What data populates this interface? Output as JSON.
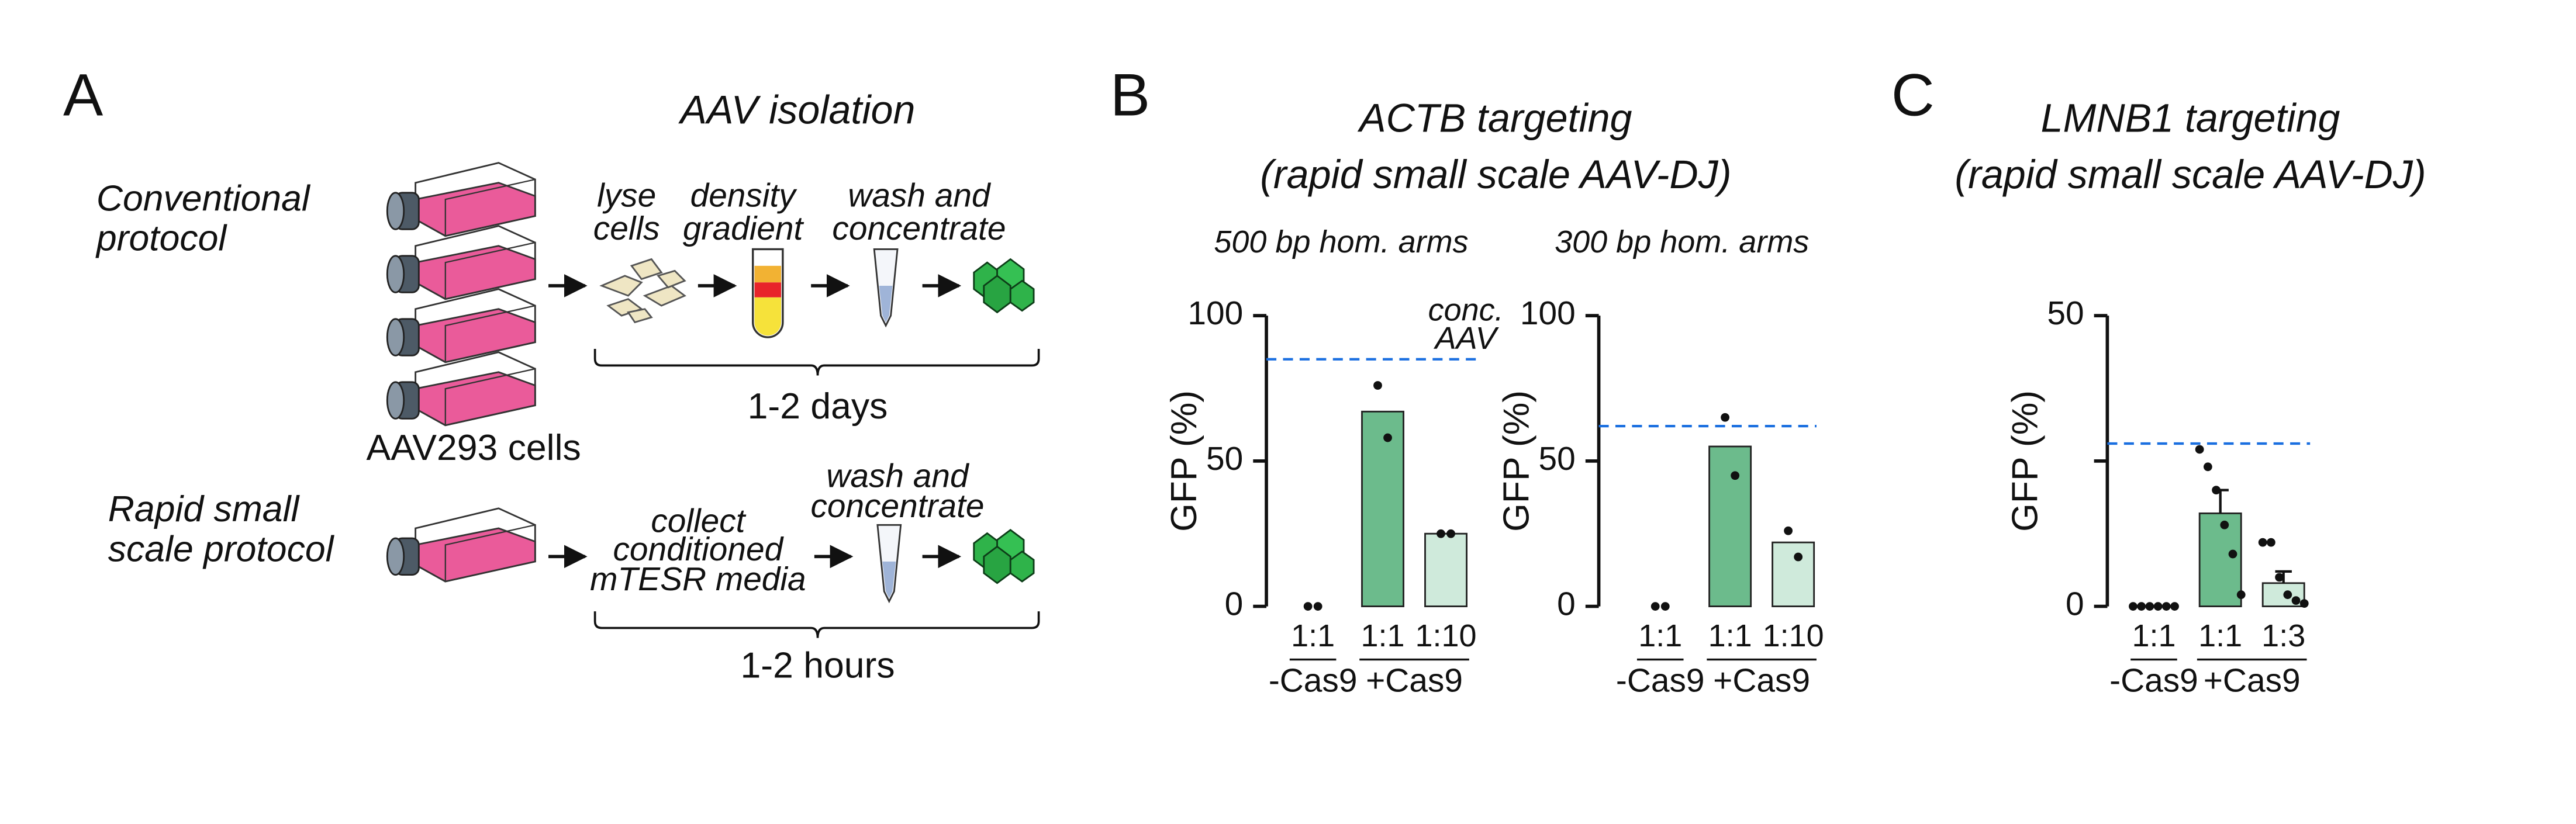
{
  "panels": {
    "a": "A",
    "b": "B",
    "c": "C"
  },
  "diagram": {
    "title": "AAV isolation",
    "conventional": [
      "Conventional",
      "protocol"
    ],
    "lyse": [
      "lyse",
      "cells"
    ],
    "density": [
      "density",
      "gradient"
    ],
    "wash1": [
      "wash and",
      "concentrate"
    ],
    "days": "1-2 days",
    "cells": "AAV293 cells",
    "rapid": [
      "Rapid small",
      "scale protocol"
    ],
    "collect": [
      "collect",
      "conditioned",
      "mTESR media"
    ],
    "wash2": [
      "wash and",
      "concentrate"
    ],
    "hours": "1-2 hours"
  },
  "chart_data": [
    {
      "type": "bar",
      "title": [
        "ACTB targeting",
        "(rapid small scale AAV-DJ)"
      ],
      "subtitle": "500 bp hom. arms",
      "ylabel": "GFP (%)",
      "categories": [
        "1:1",
        "1:1",
        "1:10"
      ],
      "groups": [
        {
          "label": "-Cas9",
          "size": 1
        },
        {
          "label": "+Cas9",
          "size": 2
        }
      ],
      "values": [
        0,
        67,
        25
      ],
      "points": [
        [
          0,
          0
        ],
        [
          76,
          58
        ],
        [
          25,
          25
        ]
      ],
      "colors": [
        "#6cbb8c",
        "#6cbb8c",
        "#cfeadb"
      ],
      "ylim": [
        0,
        100
      ],
      "yticks": [
        0,
        50,
        100
      ],
      "reference": {
        "value": 85,
        "label": [
          "conc.",
          "AAV"
        ],
        "color": "#1a6fe0"
      }
    },
    {
      "type": "bar",
      "subtitle": "300 bp hom. arms",
      "ylabel": "GFP (%)",
      "categories": [
        "1:1",
        "1:1",
        "1:10"
      ],
      "groups": [
        {
          "label": "-Cas9",
          "size": 1
        },
        {
          "label": "+Cas9",
          "size": 2
        }
      ],
      "values": [
        0,
        55,
        22
      ],
      "points": [
        [
          0,
          0
        ],
        [
          65,
          45
        ],
        [
          26,
          17
        ]
      ],
      "colors": [
        "#6cbb8c",
        "#6cbb8c",
        "#cfeadb"
      ],
      "ylim": [
        0,
        100
      ],
      "yticks": [
        0,
        50,
        100
      ],
      "reference": {
        "value": 62,
        "color": "#1a6fe0"
      }
    },
    {
      "type": "bar",
      "title": [
        "LMNB1 targeting",
        "(rapid small scale AAV-DJ)"
      ],
      "ylabel": "GFP (%)",
      "categories": [
        "1:1",
        "1:1",
        "1:3"
      ],
      "groups": [
        {
          "label": "-Cas9",
          "size": 1
        },
        {
          "label": "+Cas9",
          "size": 2
        }
      ],
      "values": [
        0,
        16,
        4
      ],
      "errors": [
        0,
        4,
        2
      ],
      "points": [
        [
          0,
          0,
          0,
          0,
          0,
          0
        ],
        [
          27,
          24,
          20,
          14,
          9,
          2
        ],
        [
          11,
          11,
          5,
          2,
          1,
          0.5
        ]
      ],
      "colors": [
        "#6cbb8c",
        "#6cbb8c",
        "#cfeadb"
      ],
      "ylim": [
        0,
        50
      ],
      "yticks": [
        0,
        50
      ],
      "minor_yticks": [
        25
      ],
      "reference": {
        "value": 28,
        "color": "#1a6fe0"
      }
    }
  ]
}
